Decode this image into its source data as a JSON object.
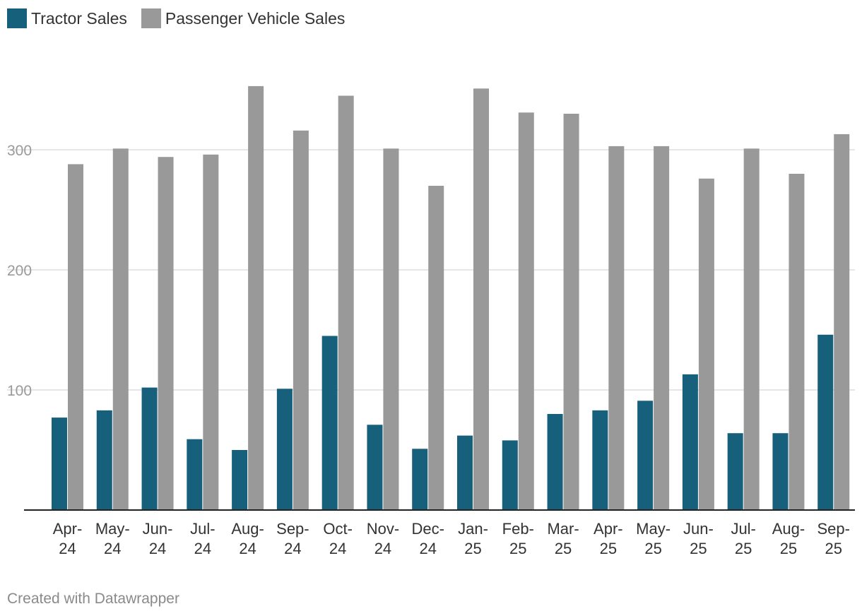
{
  "chart_data": {
    "type": "bar",
    "title": "",
    "xlabel": "",
    "ylabel": "",
    "ylim": [
      0,
      400
    ],
    "yticks": [
      100,
      200,
      300
    ],
    "grid": true,
    "legend_position": "top-left",
    "categories": [
      [
        "Apr-",
        "24"
      ],
      [
        "May-",
        "24"
      ],
      [
        "Jun-",
        "24"
      ],
      [
        "Jul-",
        "24"
      ],
      [
        "Aug-",
        "24"
      ],
      [
        "Sep-",
        "24"
      ],
      [
        "Oct-",
        "24"
      ],
      [
        "Nov-",
        "24"
      ],
      [
        "Dec-",
        "24"
      ],
      [
        "Jan-",
        "25"
      ],
      [
        "Feb-",
        "25"
      ],
      [
        "Mar-",
        "25"
      ],
      [
        "Apr-",
        "25"
      ],
      [
        "May-",
        "25"
      ],
      [
        "Jun-",
        "25"
      ],
      [
        "Jul-",
        "25"
      ],
      [
        "Aug-",
        "25"
      ],
      [
        "Sep-",
        "25"
      ]
    ],
    "series": [
      {
        "name": "Tractor Sales",
        "color": "#17607c",
        "values": [
          77,
          83,
          102,
          59,
          50,
          101,
          145,
          71,
          51,
          62,
          58,
          80,
          83,
          91,
          113,
          64,
          64,
          146
        ]
      },
      {
        "name": "Passenger Vehicle Sales",
        "color": "#999999",
        "values": [
          288,
          301,
          294,
          296,
          353,
          316,
          345,
          301,
          270,
          351,
          331,
          330,
          303,
          303,
          276,
          301,
          280,
          313
        ]
      }
    ]
  },
  "footer": "Created with Datawrapper"
}
